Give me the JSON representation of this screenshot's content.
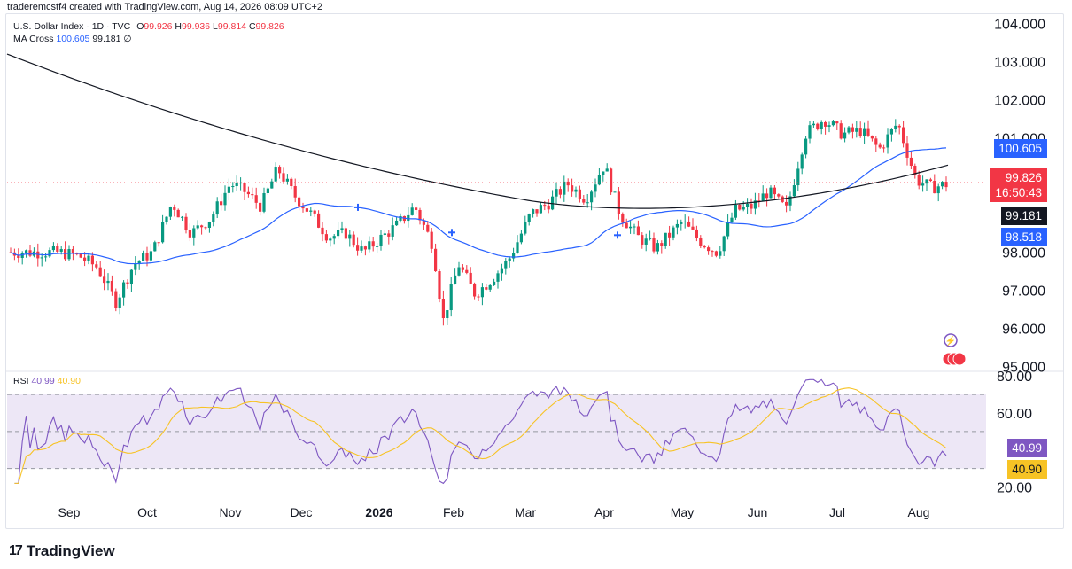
{
  "header": {
    "created_by": "traderemcstf4 created with TradingView.com, Aug 14, 2026 08:09 UTC+2"
  },
  "legend": {
    "symbol": "U.S. Dollar Index · 1D · TVC",
    "o_label": "O",
    "o_value": "99.926",
    "h_label": "H",
    "h_value": "99.936",
    "l_label": "L",
    "l_value": "99.814",
    "c_label": "C",
    "c_value": "99.826",
    "ma_label": "MA Cross",
    "ma_fast": "100.605",
    "ma_slow": "99.181",
    "ma_suffix": "∅",
    "rsi_label": "RSI",
    "rsi_value": "40.99",
    "rsi_ma": "40.90"
  },
  "footer": {
    "brand": "TradingView"
  },
  "colors": {
    "up": "#089981",
    "down": "#f23645",
    "fast_ma": "#2962ff",
    "slow_ma": "#131722",
    "rsi": "#7e57c2",
    "rsi_ma": "#f7c325",
    "rsi_band": "#ede7f6"
  },
  "chart_data": [
    {
      "type": "candlestick",
      "title": "U.S. Dollar Index · 1D · TVC",
      "x_ticks": [
        "Sep",
        "Oct",
        "Nov",
        "Dec",
        "2026",
        "Feb",
        "Mar",
        "Apr",
        "May",
        "Jun",
        "Jul",
        "Aug"
      ],
      "y_ticks": [
        "95.000",
        "96.000",
        "97.000",
        "98.000",
        "99.000",
        "100.000",
        "101.000",
        "102.000",
        "103.000",
        "104.000"
      ],
      "ylim": [
        94.9,
        104.2
      ],
      "last_close": "99.826",
      "countdown": "16:50:43",
      "ma_fast_value": "100.605",
      "ma_slow_value": "99.181",
      "ma_cross_label": "98.518",
      "cross_markers": [
        "Dec",
        "Jan",
        "Apr"
      ],
      "closes_anchor": [
        [
          "Aug 22",
          98.0
        ],
        [
          "Sep 5",
          97.9
        ],
        [
          "Sep 12",
          97.6
        ],
        [
          "Sep 19",
          96.7
        ],
        [
          "Sep 26",
          97.7
        ],
        [
          "Oct 3",
          98.0
        ],
        [
          "Oct 10",
          99.3
        ],
        [
          "Oct 17",
          98.5
        ],
        [
          "Oct 24",
          98.9
        ],
        [
          "Oct 31",
          99.8
        ],
        [
          "Nov 7",
          99.6
        ],
        [
          "Nov 14",
          99.2
        ],
        [
          "Nov 21",
          100.2
        ],
        [
          "Nov 28",
          99.5
        ],
        [
          "Dec 5",
          99.0
        ],
        [
          "Dec 12",
          98.4
        ],
        [
          "Dec 19",
          98.5
        ],
        [
          "Dec 26",
          98.0
        ],
        [
          "Jan 9",
          98.7
        ],
        [
          "Jan 16",
          99.2
        ],
        [
          "Jan 23",
          98.2
        ],
        [
          "Jan 27",
          96.2
        ],
        [
          "Feb 3",
          97.7
        ],
        [
          "Feb 10",
          96.9
        ],
        [
          "Feb 17",
          97.3
        ],
        [
          "Feb 24",
          97.8
        ],
        [
          "Mar 3",
          99.0
        ],
        [
          "Mar 10",
          99.3
        ],
        [
          "Mar 17",
          99.8
        ],
        [
          "Mar 24",
          99.4
        ],
        [
          "Mar 31",
          100.3
        ],
        [
          "Apr 7",
          99.0
        ],
        [
          "Apr 14",
          98.4
        ],
        [
          "Apr 21",
          98.1
        ],
        [
          "May 1",
          98.8
        ],
        [
          "May 8",
          98.3
        ],
        [
          "May 15",
          98.0
        ],
        [
          "May 22",
          99.1
        ],
        [
          "May 29",
          99.2
        ],
        [
          "Jun 5",
          99.6
        ],
        [
          "Jun 12",
          99.1
        ],
        [
          "Jun 19",
          101.1
        ],
        [
          "Jun 26",
          101.5
        ],
        [
          "Jul 3",
          101.1
        ],
        [
          "Jul 10",
          101.2
        ],
        [
          "Jul 17",
          100.7
        ],
        [
          "Jul 24",
          101.4
        ],
        [
          "Jul 31",
          99.9
        ],
        [
          "Aug 7",
          99.7
        ],
        [
          "Aug 14",
          99.8
        ]
      ]
    },
    {
      "type": "line",
      "title": "RSI",
      "y_ticks": [
        "20.00",
        "60.00",
        "80.00"
      ],
      "ylim": [
        15,
        82
      ],
      "band": [
        30,
        70
      ],
      "rsi_last": "40.99",
      "rsi_ma_last": "40.90"
    }
  ]
}
